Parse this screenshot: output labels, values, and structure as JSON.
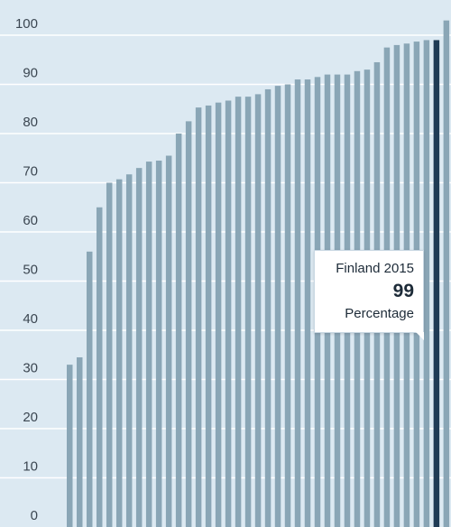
{
  "chart_data": {
    "type": "bar",
    "title": "",
    "xlabel": "",
    "ylabel": "",
    "ylim": [
      0,
      105
    ],
    "yticks": [
      0,
      10,
      20,
      30,
      40,
      50,
      60,
      70,
      80,
      90,
      100
    ],
    "grid": true,
    "highlight_index": 37,
    "values": [
      33,
      34.5,
      56,
      65,
      70,
      70.7,
      71.7,
      73,
      74.3,
      74.5,
      75.5,
      80,
      82.5,
      85.3,
      85.7,
      86.3,
      86.7,
      87.5,
      87.5,
      88,
      89,
      89.7,
      90,
      91,
      91,
      91.5,
      92,
      92,
      92,
      92.7,
      93,
      94.5,
      97.5,
      98,
      98.3,
      98.7,
      99,
      99,
      103
    ],
    "colors": {
      "bar": "#8aa6b6",
      "highlight": "#1f3b55",
      "grid": "#ffffff",
      "background": "#dce9f2"
    }
  },
  "tooltip": {
    "title": "Finland 2015",
    "value": "99",
    "unit": "Percentage"
  }
}
